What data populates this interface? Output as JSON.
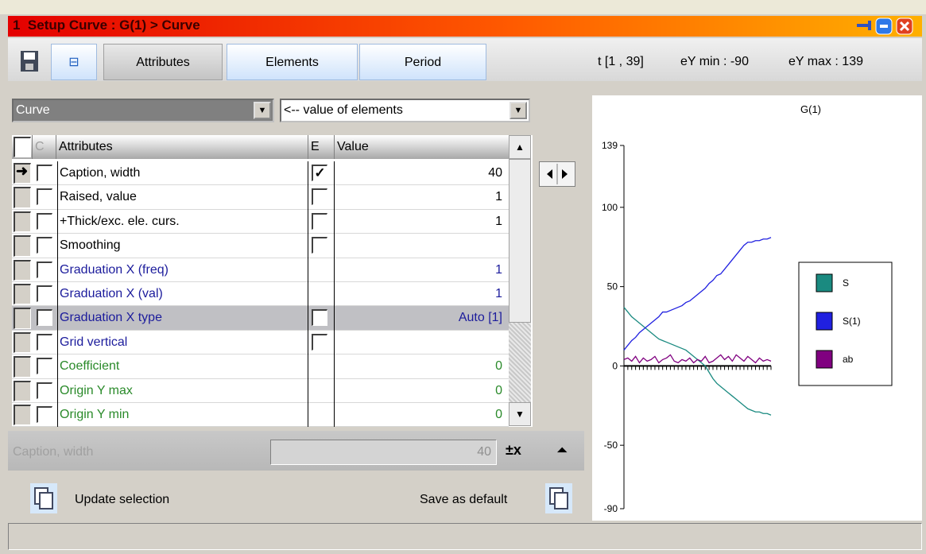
{
  "window": {
    "title": "1  Setup Curve : G(1) > Curve"
  },
  "toolbar": {
    "tabs": [
      "Attributes",
      "Elements",
      "Period"
    ],
    "active_tab": 0,
    "info": [
      "t [1 , 39]",
      "eY min : -90",
      "eY max : 139"
    ]
  },
  "selectors": [
    "Curve",
    "<-- value of elements"
  ],
  "table": {
    "headers": [
      "C",
      "Attributes",
      "E",
      "Value"
    ],
    "rows": [
      {
        "label": "Caption, width",
        "e": "checked",
        "value": 40,
        "color": "#000000",
        "current": true
      },
      {
        "label": "Raised, value",
        "e": "unchecked",
        "value": 1,
        "color": "#000000"
      },
      {
        "label": "+Thick/exc. ele. curs.",
        "e": "unchecked",
        "value": 1,
        "color": "#000000"
      },
      {
        "label": "Smoothing",
        "e": "unchecked",
        "color": "#000000"
      },
      {
        "label": "Graduation X (freq)",
        "value": 1,
        "color": "#1c1c9c"
      },
      {
        "label": "Graduation X (val)",
        "value": 1,
        "color": "#1c1c9c"
      },
      {
        "label": "Graduation X type",
        "e": "unchecked",
        "value": "Auto [1]",
        "color": "#1c1c9c",
        "selected": true
      },
      {
        "label": "Grid vertical",
        "e": "unchecked",
        "color": "#1c1c9c"
      },
      {
        "label": "Coefficient",
        "value": 0,
        "color": "#2a8a2a"
      },
      {
        "label": "Origin Y max",
        "value": 0,
        "color": "#2a8a2a"
      },
      {
        "label": "Origin Y min",
        "value": 0,
        "color": "#2a8a2a"
      }
    ]
  },
  "editor": {
    "label": "Caption, width",
    "value": 40
  },
  "buttons": [
    "Update selection",
    "Save as default"
  ],
  "chart_data": {
    "type": "line",
    "title": "G(1)",
    "x": [
      1,
      2,
      3,
      4,
      5,
      6,
      7,
      8,
      9,
      10,
      11,
      12,
      13,
      14,
      15,
      16,
      17,
      18,
      19,
      20,
      21,
      22,
      23,
      24,
      25,
      26,
      27,
      28,
      29,
      30,
      31,
      32,
      33,
      34,
      35,
      36,
      37,
      38,
      39
    ],
    "xlim": [
      1,
      39
    ],
    "ylim": [
      -90,
      139
    ],
    "yticks": [
      -90,
      -50,
      0,
      50,
      100,
      139
    ],
    "series": [
      {
        "name": "S",
        "color": "#1a8a80",
        "values": [
          37,
          34,
          31,
          29,
          27,
          25,
          23,
          21,
          19,
          17,
          16,
          15,
          14,
          13,
          12,
          11,
          10,
          8,
          6,
          4,
          2,
          0,
          -4,
          -8,
          -11,
          -13,
          -15,
          -17,
          -19,
          -21,
          -23,
          -25,
          -27,
          -28,
          -29,
          -29,
          -30,
          -30,
          -31
        ]
      },
      {
        "name": "S(1)",
        "color": "#2020e0",
        "values": [
          10,
          13,
          16,
          18,
          21,
          23,
          25,
          27,
          29,
          31,
          34,
          34,
          35,
          36,
          37,
          38,
          40,
          41,
          43,
          45,
          47,
          49,
          52,
          54,
          57,
          58,
          61,
          64,
          67,
          70,
          73,
          76,
          78,
          78,
          79,
          79,
          80,
          80,
          81
        ]
      },
      {
        "name": "ab",
        "color": "#800080",
        "values": [
          4,
          5,
          3,
          6,
          2,
          5,
          3,
          4,
          6,
          2,
          4,
          5,
          7,
          3,
          2,
          4,
          3,
          5,
          2,
          4,
          3,
          6,
          2,
          3,
          5,
          7,
          4,
          6,
          3,
          7,
          5,
          3,
          6,
          4,
          2,
          5,
          3,
          4,
          3
        ]
      }
    ]
  }
}
